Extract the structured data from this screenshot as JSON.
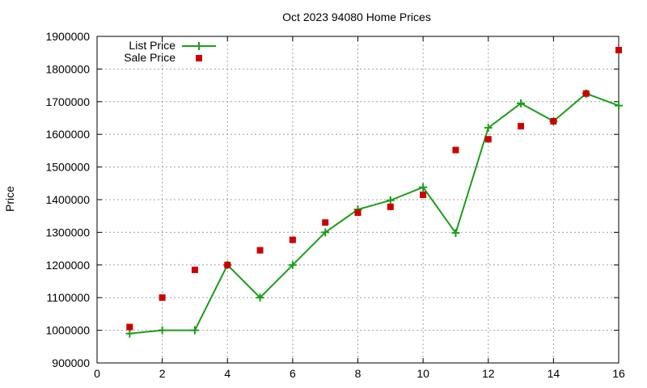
{
  "chart_data": {
    "type": "line",
    "title": "Oct 2023 94080 Home Prices",
    "xlabel": "",
    "ylabel": "Price",
    "xlim": [
      0,
      16
    ],
    "ylim": [
      900000,
      1900000
    ],
    "x_ticks": [
      0,
      2,
      4,
      6,
      8,
      10,
      12,
      14,
      16
    ],
    "y_ticks": [
      900000,
      1000000,
      1100000,
      1200000,
      1300000,
      1400000,
      1500000,
      1600000,
      1700000,
      1800000,
      1900000
    ],
    "grid": true,
    "legend_position": "top-left",
    "series": [
      {
        "name": "List Price",
        "style": "line-with-plus-markers",
        "color": "#1a9e1a",
        "x": [
          1,
          2,
          3,
          4,
          5,
          6,
          7,
          8,
          9,
          10,
          11,
          12,
          13,
          14,
          15,
          16
        ],
        "values": [
          990000,
          1000000,
          1000000,
          1200000,
          1100000,
          1200000,
          1300000,
          1370000,
          1398000,
          1438000,
          1298000,
          1620000,
          1695000,
          1640000,
          1725000,
          1688000
        ]
      },
      {
        "name": "Sale Price",
        "style": "square-markers",
        "color": "#cc0000",
        "x": [
          1,
          2,
          3,
          4,
          5,
          6,
          7,
          8,
          9,
          10,
          11,
          12,
          13,
          14,
          15,
          16
        ],
        "values": [
          1010000,
          1100000,
          1185000,
          1200000,
          1245000,
          1277000,
          1330000,
          1360000,
          1378000,
          1415000,
          1552000,
          1585000,
          1625000,
          1640000,
          1725000,
          1858000
        ]
      }
    ]
  }
}
